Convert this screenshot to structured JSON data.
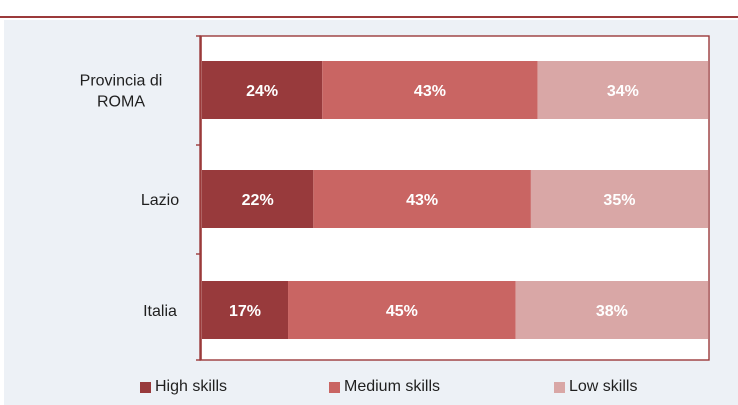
{
  "chart_data": {
    "type": "bar",
    "orientation": "horizontal",
    "stacked": true,
    "percent_stacked": true,
    "categories": [
      "Provincia di\nROMA",
      "Lazio",
      "Italia"
    ],
    "series": [
      {
        "name": "High skills",
        "values": [
          24,
          22,
          17
        ],
        "labels": [
          "24%",
          "22%",
          "17%"
        ],
        "color": "#983a3c"
      },
      {
        "name": "Medium skills",
        "values": [
          43,
          43,
          45
        ],
        "labels": [
          "43%",
          "43%",
          "45%"
        ],
        "color": "#c96563"
      },
      {
        "name": "Low skills",
        "values": [
          34,
          35,
          38
        ],
        "labels": [
          "34%",
          "35%",
          "38%"
        ],
        "color": "#d9a7a6"
      }
    ],
    "xlim": [
      0,
      100
    ],
    "grid": false,
    "legend_position": "bottom"
  },
  "colors": {
    "axis": "#9b3a3b",
    "panel": "#edf1f6",
    "plot_area": "#ffffff",
    "data_label": "#ffffff"
  }
}
